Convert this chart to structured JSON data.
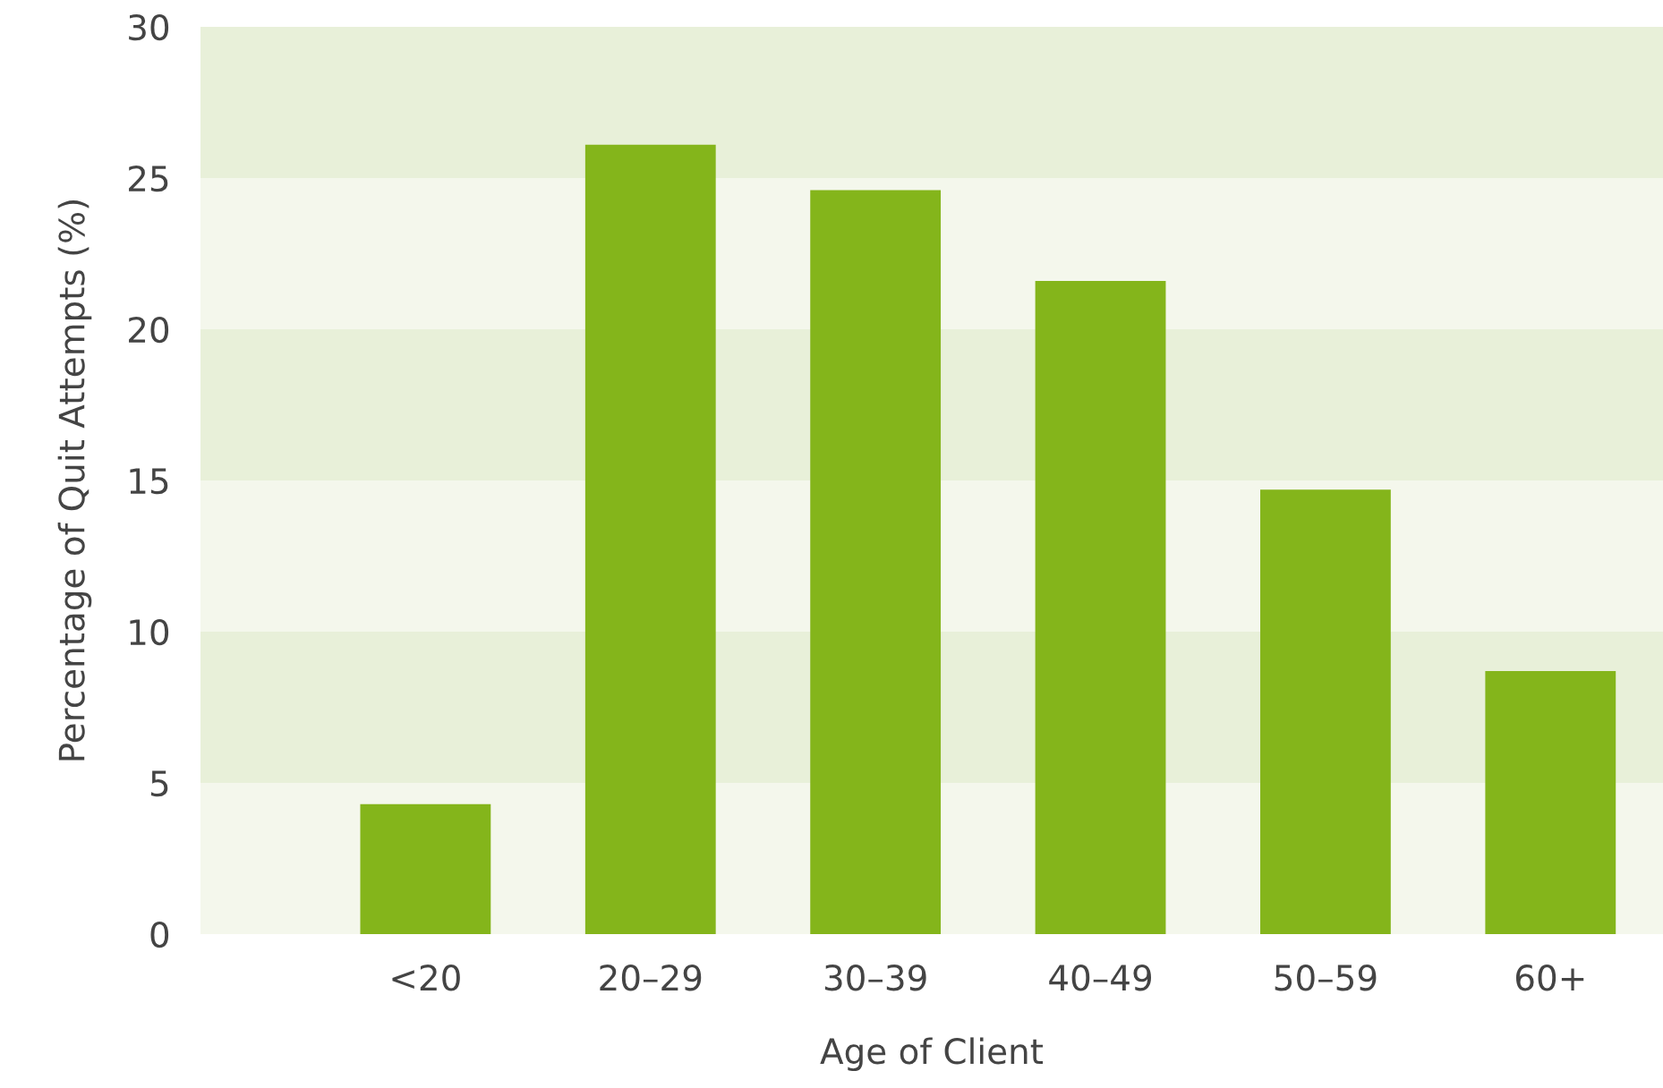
{
  "chart_data": {
    "type": "bar",
    "xlabel": "Age of Client",
    "ylabel": "Percentage of Quit Attempts (%)",
    "categories": [
      "<20",
      "20–29",
      "30–39",
      "40–49",
      "50–59",
      "60+"
    ],
    "values": [
      4.3,
      26.1,
      24.6,
      21.6,
      14.7,
      8.7
    ],
    "color": "#84b51b",
    "ylim": [
      0,
      30
    ],
    "yticks": [
      0,
      5,
      10,
      15,
      20,
      25,
      30
    ],
    "bands": [
      {
        "axis": "y",
        "from": 0,
        "to": 5,
        "color": "#f4f7ec"
      },
      {
        "axis": "y",
        "from": 5,
        "to": 10,
        "color": "#e8f0d9"
      },
      {
        "axis": "y",
        "from": 10,
        "to": 15,
        "color": "#f4f7ec"
      },
      {
        "axis": "y",
        "from": 15,
        "to": 20,
        "color": "#e8f0d9"
      },
      {
        "axis": "y",
        "from": 20,
        "to": 25,
        "color": "#f4f7ec"
      },
      {
        "axis": "y",
        "from": 25,
        "to": 30,
        "color": "#e8f0d9"
      }
    ]
  }
}
